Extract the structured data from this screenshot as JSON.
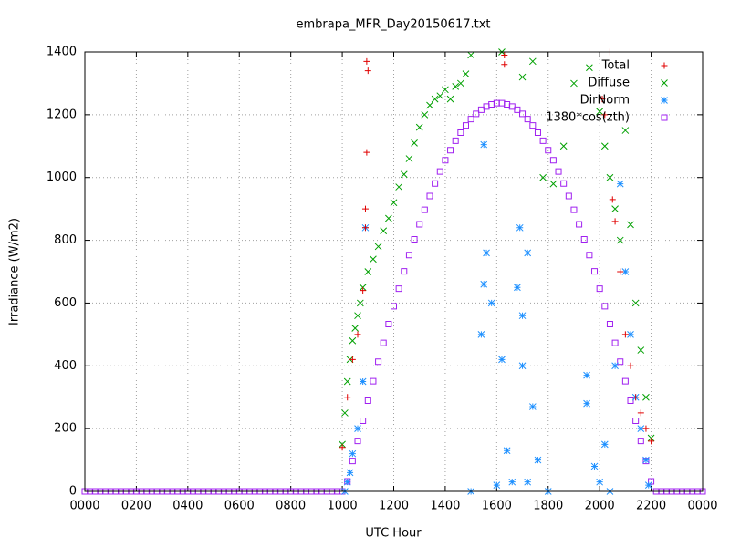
{
  "chart_data": {
    "type": "scatter",
    "title": "embrapa_MFR_Day20150617.txt",
    "x_label": "UTC Hour",
    "y_label": "Irradiance (W/m2)",
    "xlim": [
      0,
      24
    ],
    "ylim": [
      0,
      1400
    ],
    "xticks": [
      {
        "value": 0,
        "label": "0000"
      },
      {
        "value": 2,
        "label": "0200"
      },
      {
        "value": 4,
        "label": "0400"
      },
      {
        "value": 6,
        "label": "0600"
      },
      {
        "value": 8,
        "label": "0800"
      },
      {
        "value": 10,
        "label": "1000"
      },
      {
        "value": 12,
        "label": "1200"
      },
      {
        "value": 14,
        "label": "1400"
      },
      {
        "value": 16,
        "label": "1600"
      },
      {
        "value": 18,
        "label": "1800"
      },
      {
        "value": 20,
        "label": "2000"
      },
      {
        "value": 22,
        "label": "2200"
      },
      {
        "value": 24,
        "label": "0000"
      }
    ],
    "yticks": [
      0,
      200,
      400,
      600,
      800,
      1000,
      1200,
      1400
    ],
    "grid": true,
    "legend": "top-right",
    "series": [
      {
        "name": "Total",
        "color": "#e00000",
        "marker": "plus",
        "x": [
          10.0,
          10.2,
          10.4,
          10.6,
          10.8,
          10.9,
          10.9,
          10.95,
          10.95,
          11.0,
          16.3,
          16.3,
          20.1,
          20.2,
          20.4,
          20.5,
          20.6,
          20.8,
          21.0,
          21.2,
          21.4,
          21.6,
          21.8,
          22.0
        ],
        "values": [
          140,
          300,
          420,
          500,
          640,
          840,
          900,
          1080,
          1370,
          1340,
          1360,
          1390,
          1250,
          1200,
          1400,
          930,
          860,
          700,
          500,
          400,
          300,
          250,
          200,
          160
        ]
      },
      {
        "name": "Diffuse",
        "color": "#00a000",
        "marker": "cross",
        "x": [
          10.0,
          10.1,
          10.2,
          10.3,
          10.4,
          10.5,
          10.6,
          10.7,
          10.8,
          11.0,
          11.2,
          11.4,
          11.6,
          11.8,
          12.0,
          12.2,
          12.4,
          12.6,
          12.8,
          13.0,
          13.2,
          13.4,
          13.6,
          13.8,
          14.0,
          14.2,
          14.4,
          14.6,
          14.8,
          15.0,
          16.2,
          17.0,
          17.4,
          17.8,
          18.2,
          18.6,
          19.0,
          19.6,
          20.0,
          20.2,
          20.4,
          20.6,
          20.8,
          21.0,
          21.2,
          21.4,
          21.6,
          21.8,
          22.0
        ],
        "values": [
          150,
          250,
          350,
          420,
          480,
          520,
          560,
          600,
          650,
          700,
          740,
          780,
          830,
          870,
          920,
          970,
          1010,
          1060,
          1110,
          1160,
          1200,
          1230,
          1250,
          1260,
          1280,
          1250,
          1290,
          1300,
          1330,
          1390,
          1400,
          1320,
          1370,
          1000,
          980,
          1100,
          1300,
          1350,
          1210,
          1100,
          1000,
          900,
          800,
          1150,
          850,
          600,
          450,
          300,
          170
        ]
      },
      {
        "name": "DirNorm",
        "color": "#1e90ff",
        "marker": "star",
        "x": [
          10.1,
          10.2,
          10.3,
          10.4,
          10.6,
          10.8,
          10.9,
          15.5,
          15.5,
          15.6,
          15.4,
          15.8,
          16.2,
          16.4,
          16.6,
          16.8,
          16.9,
          17.0,
          17.2,
          17.0,
          17.4,
          17.6,
          17.2,
          19.5,
          19.5,
          19.8,
          20.0,
          20.2,
          20.4,
          20.6,
          20.8,
          21.0,
          21.2,
          21.4,
          21.6,
          21.8,
          21.9,
          15.0,
          18.0,
          16.0
        ],
        "values": [
          0,
          30,
          60,
          120,
          200,
          350,
          840,
          1105,
          660,
          760,
          500,
          600,
          420,
          130,
          30,
          650,
          840,
          560,
          760,
          400,
          270,
          100,
          30,
          370,
          280,
          80,
          30,
          150,
          0,
          400,
          980,
          700,
          500,
          300,
          200,
          100,
          20,
          0,
          0,
          20
        ]
      },
      {
        "name": "1380*cos(zth)",
        "color": "#a020f0",
        "marker": "square",
        "x": [
          0,
          0.2,
          0.4,
          0.6,
          0.8,
          1.0,
          1.2,
          1.4,
          1.6,
          1.8,
          2.0,
          2.2,
          2.4,
          2.6,
          2.8,
          3.0,
          3.2,
          3.4,
          3.6,
          3.8,
          4.0,
          4.2,
          4.4,
          4.6,
          4.8,
          5.0,
          5.2,
          5.4,
          5.6,
          5.8,
          6.0,
          6.2,
          6.4,
          6.6,
          6.8,
          7.0,
          7.2,
          7.4,
          7.6,
          7.8,
          8.0,
          8.2,
          8.4,
          8.6,
          8.8,
          9.0,
          9.2,
          9.4,
          9.6,
          9.8,
          10.0,
          10.2,
          10.4,
          10.6,
          10.8,
          11.0,
          11.2,
          11.4,
          11.6,
          11.8,
          12.0,
          12.2,
          12.4,
          12.6,
          12.8,
          13.0,
          13.2,
          13.4,
          13.6,
          13.8,
          14.0,
          14.2,
          14.4,
          14.6,
          14.8,
          15.0,
          15.2,
          15.4,
          15.6,
          15.8,
          16.0,
          16.2,
          16.4,
          16.6,
          16.8,
          17.0,
          17.2,
          17.4,
          17.6,
          17.8,
          18.0,
          18.2,
          18.4,
          18.6,
          18.8,
          19.0,
          19.2,
          19.4,
          19.6,
          19.8,
          20.0,
          20.2,
          20.4,
          20.6,
          20.8,
          21.0,
          21.2,
          21.4,
          21.6,
          21.8,
          22.0,
          22.2,
          22.4,
          22.6,
          22.8,
          23.0,
          23.2,
          23.4,
          23.6,
          23.8,
          24.0
        ],
        "values": [
          0,
          0,
          0,
          0,
          0,
          0,
          0,
          0,
          0,
          0,
          0,
          0,
          0,
          0,
          0,
          0,
          0,
          0,
          0,
          0,
          0,
          0,
          0,
          0,
          0,
          0,
          0,
          0,
          0,
          0,
          0,
          0,
          0,
          0,
          0,
          0,
          0,
          0,
          0,
          0,
          0,
          0,
          0,
          0,
          0,
          0,
          0,
          0,
          0,
          0,
          0,
          32,
          97,
          161,
          225,
          289,
          351,
          413,
          473,
          533,
          590,
          646,
          701,
          753,
          803,
          851,
          897,
          941,
          981,
          1019,
          1055,
          1087,
          1117,
          1143,
          1166,
          1186,
          1203,
          1216,
          1226,
          1233,
          1237,
          1237,
          1233,
          1226,
          1216,
          1203,
          1186,
          1166,
          1143,
          1117,
          1087,
          1055,
          1019,
          981,
          941,
          897,
          851,
          803,
          753,
          701,
          646,
          590,
          533,
          473,
          413,
          351,
          289,
          225,
          161,
          97,
          32,
          0,
          0,
          0,
          0,
          0,
          0,
          0,
          0,
          0,
          0
        ]
      }
    ]
  }
}
